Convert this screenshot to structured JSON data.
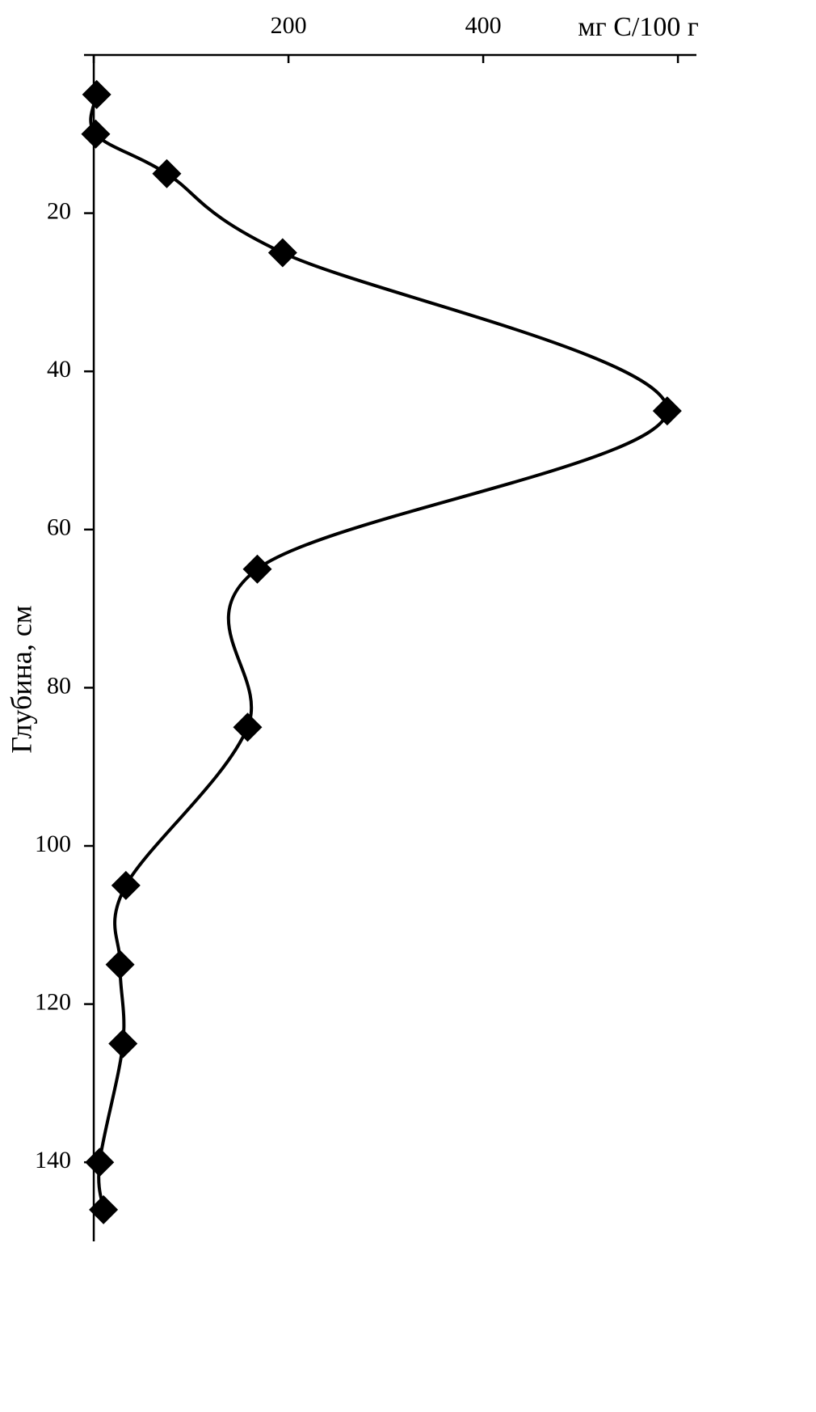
{
  "chart_data": {
    "type": "line",
    "xlabel": "мг С/100 г",
    "ylabel": "Глубина, см",
    "x": [
      3,
      2,
      75,
      194,
      589,
      168,
      158,
      33,
      27,
      30,
      6,
      10
    ],
    "values": [
      5,
      10,
      15,
      25,
      45,
      65,
      85,
      105,
      115,
      125,
      140,
      146
    ],
    "color": "#000000",
    "marker": "diamond",
    "smooth": true,
    "xlim": [
      -10,
      619
    ],
    "ylim": [
      0,
      150
    ],
    "y_inverted": true,
    "x_axis": "top",
    "xticks": [
      200,
      400
    ],
    "xtick_marks": [
      0,
      200,
      400,
      600
    ],
    "yticks": [
      20,
      40,
      60,
      80,
      100,
      120,
      140
    ]
  }
}
